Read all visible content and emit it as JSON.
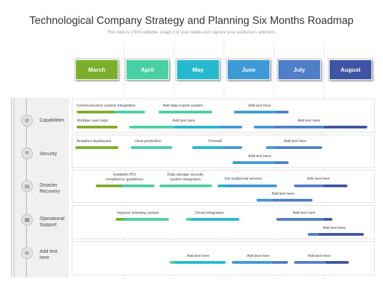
{
  "header": {
    "title": "Technological Company Strategy and Planning Six Months Roadmap",
    "subtitle": "This slide is 100% editable. Adapt it to your needs and capture your audience's attention."
  },
  "colors": {
    "green": "#7cae2c",
    "teal": "#3ecfa8",
    "cyan": "#26b7c9",
    "blue": "#3a9ad9",
    "steel": "#4f7fc6",
    "indigo": "#3f55a3"
  },
  "months": [
    {
      "label": "March",
      "color": "#7cae2c"
    },
    {
      "label": "April",
      "color": "#48d0a4"
    },
    {
      "label": "May",
      "color": "#24b9cc"
    },
    {
      "label": "June",
      "color": "#3e9ad6"
    },
    {
      "label": "July",
      "color": "#4f7fc6"
    },
    {
      "label": "August",
      "color": "#3f55a3"
    }
  ],
  "categories": [
    {
      "label": "Capabilities",
      "icon": "gear-hand-icon"
    },
    {
      "label": "Security",
      "icon": "shield-icon"
    },
    {
      "label": "Disaster Recovery",
      "icon": "server-icon"
    },
    {
      "label": "Operational Support",
      "icon": "document-icon"
    },
    {
      "label": "Add text here",
      "icon": "settings-icon"
    }
  ],
  "tasks": {
    "capabilities": [
      "Communication system integration",
      "Add data export system",
      "Add text here",
      "Multiple user login",
      "Add text here",
      "Add text here"
    ],
    "security": [
      "Analytics dashboard",
      "Virus protection",
      "Firewall",
      "Add text here",
      "Add text here"
    ],
    "disaster_recovery": [
      "Establish PCI compliance guidelines",
      "Data storage security system integration",
      "Set multizonal servers",
      "Add text here",
      "Add text here"
    ],
    "operational_support": [
      "Improve ticketing system",
      "Cloud integration",
      "Add text here",
      "Add text here"
    ],
    "add_text_here": [
      "Add text here",
      "Add text here",
      "Add text here"
    ]
  }
}
